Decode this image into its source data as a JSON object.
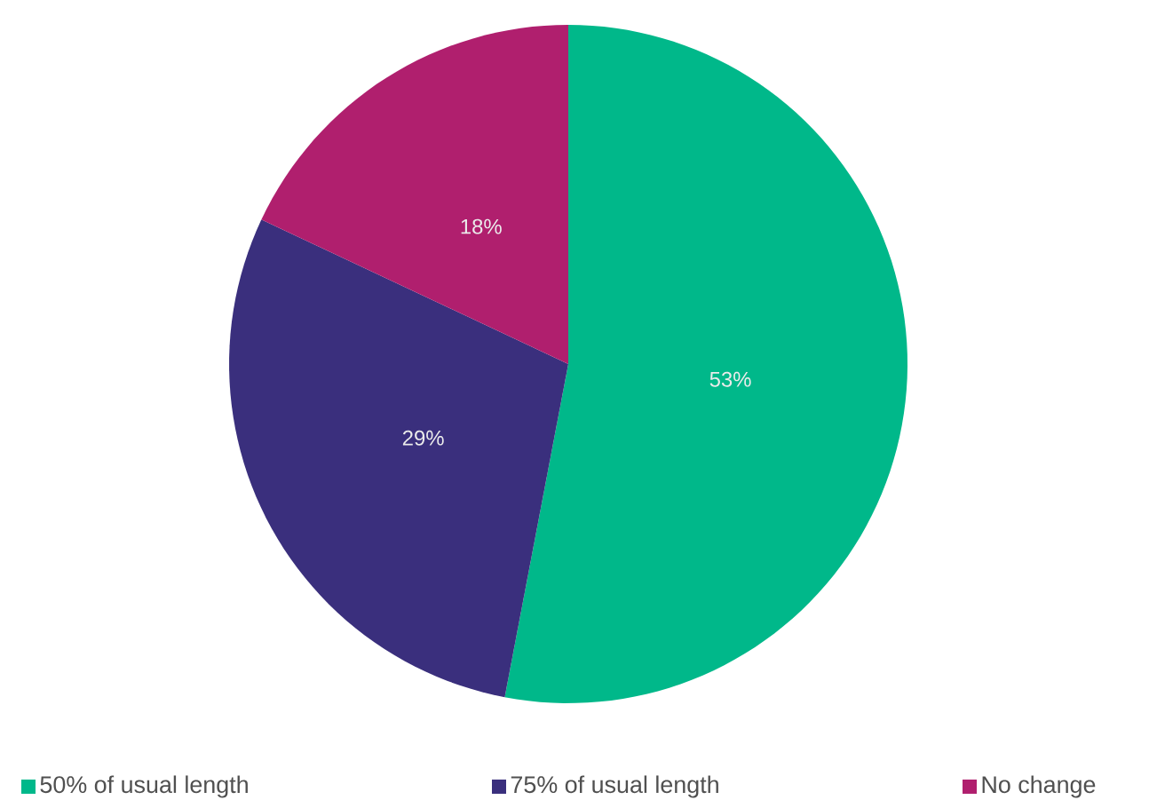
{
  "chart_data": {
    "type": "pie",
    "categories": [
      "50% of usual length",
      "75% of usual length",
      "No change"
    ],
    "values": [
      53,
      29,
      18
    ],
    "value_labels": [
      "53%",
      "29%",
      "18%"
    ],
    "colors": [
      "#00b88a",
      "#3a2f7d",
      "#b01f6e"
    ],
    "legend": "bottom"
  }
}
